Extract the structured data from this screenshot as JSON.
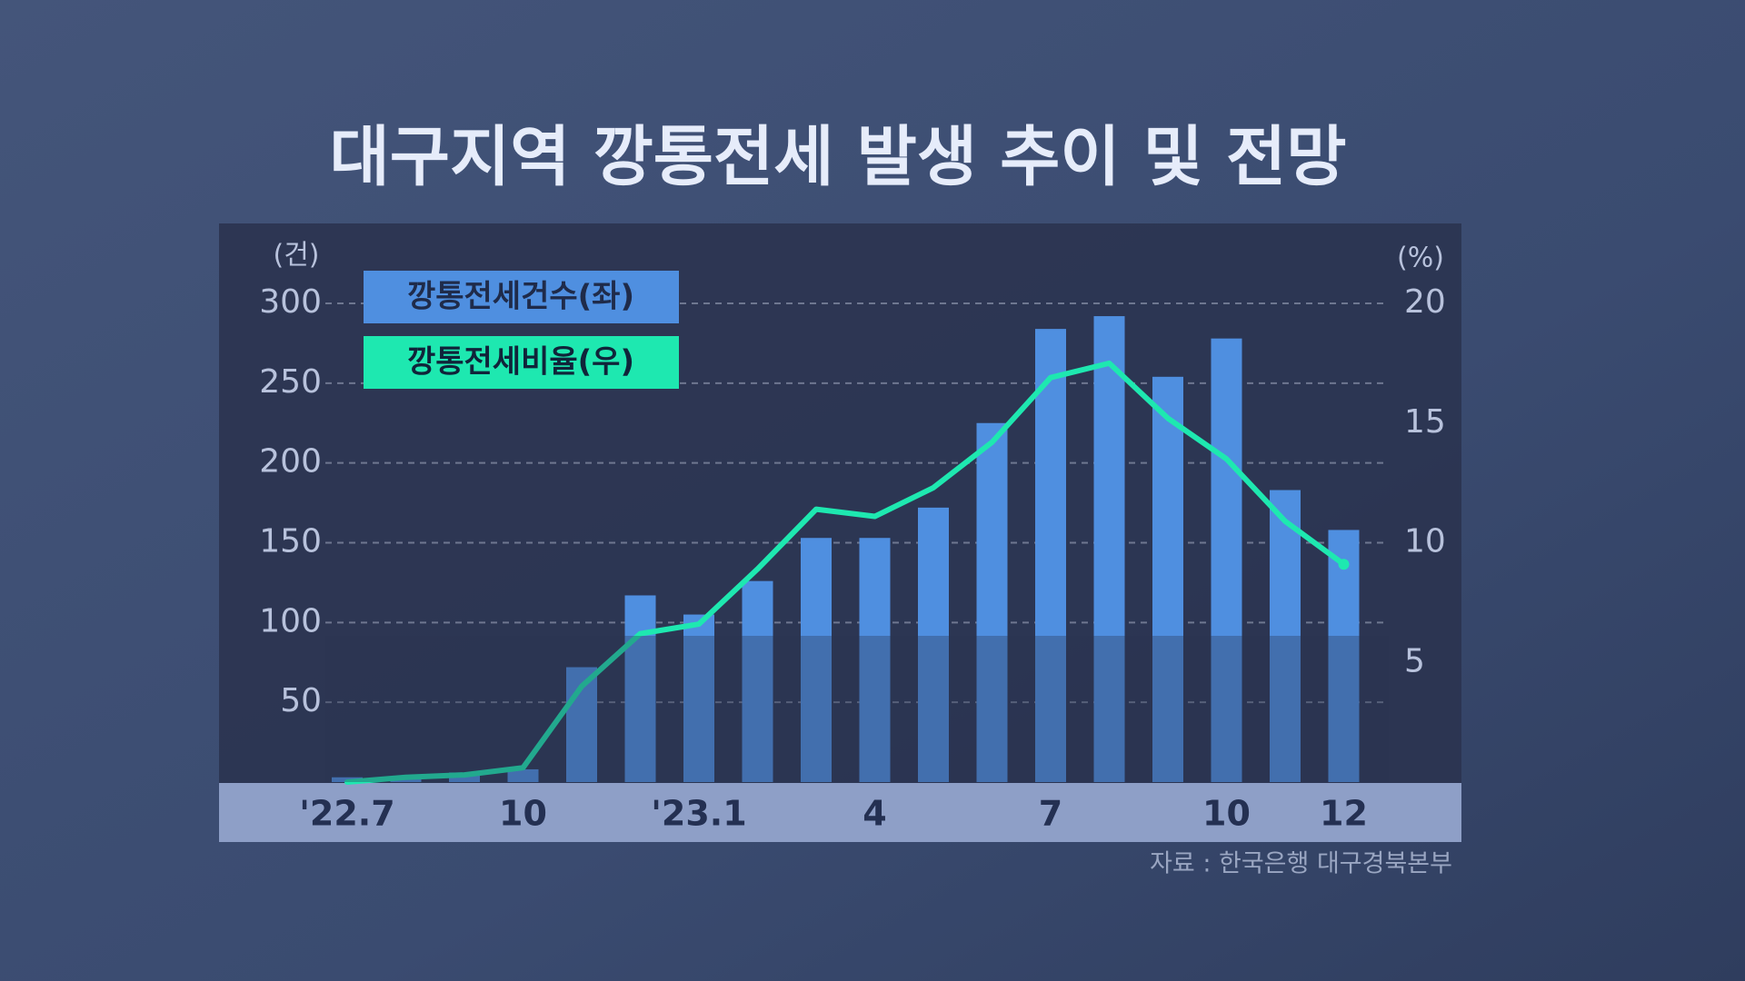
{
  "chart_data": {
    "type": "combo",
    "title": "대구지역 깡통전세 발생 추이 및 전망",
    "y_label": "(건)",
    "y2_label": "(%)",
    "source": "자료 : 한국은행 대구경북본부",
    "categories": [
      "'22.7",
      null,
      null,
      "10",
      null,
      null,
      "'23.1",
      null,
      null,
      "4",
      null,
      null,
      "7",
      null,
      null,
      "10",
      null,
      "12"
    ],
    "series": [
      {
        "name": "깡통전세건수(좌)",
        "type": "bar",
        "color": "#4f8fe0",
        "values": [
          3,
          2,
          6,
          8,
          72,
          117,
          105,
          126,
          153,
          153,
          172,
          225,
          284,
          292,
          254,
          278,
          183,
          158
        ]
      },
      {
        "name": "깡통전세비율(우)",
        "type": "line",
        "axis": "y2",
        "color": "#1ee8b0",
        "values": [
          0,
          0.2,
          0.3,
          0.6,
          4.0,
          6.2,
          6.6,
          8.9,
          11.4,
          11.1,
          12.3,
          14.2,
          16.9,
          17.5,
          15.2,
          13.5,
          10.9,
          9.1
        ]
      }
    ],
    "ylim": [
      0,
      300
    ],
    "yticks": [
      50,
      100,
      150,
      200,
      250,
      300
    ],
    "y2lim": [
      0,
      20
    ],
    "y2ticks": [
      5,
      10,
      15,
      20
    ],
    "grid": true
  }
}
